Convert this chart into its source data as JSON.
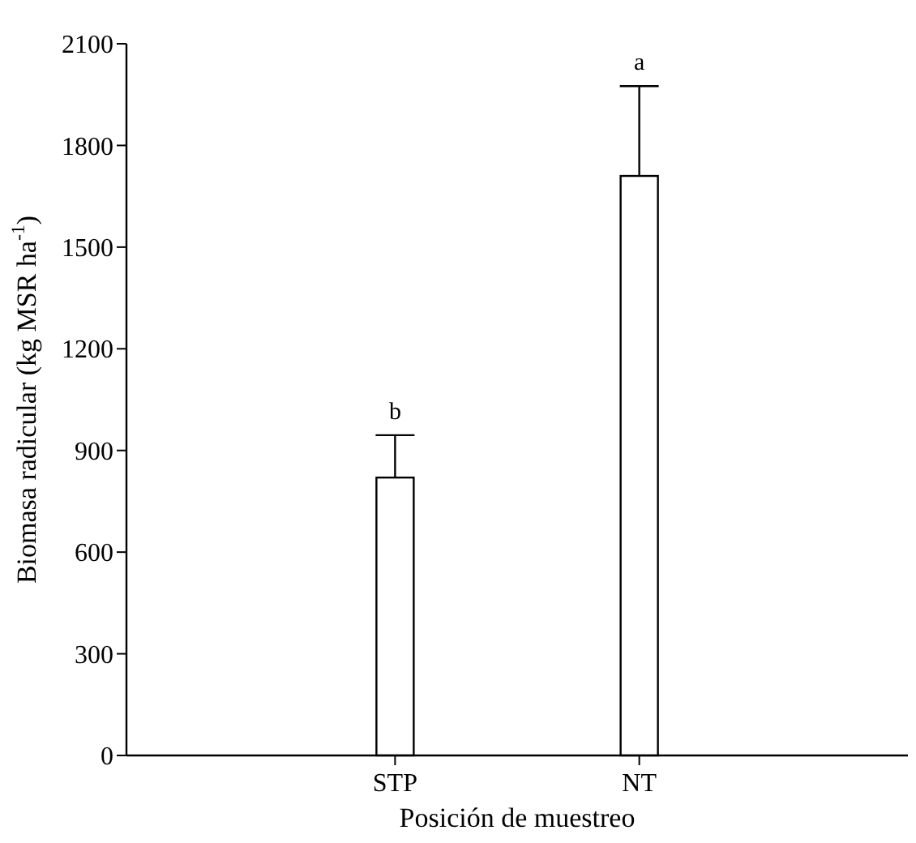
{
  "chart_data": {
    "type": "bar",
    "xlabel": "Posición de muestreo",
    "ylabel": "Biomasa radicular (kg MSR ha$^{-1}$)",
    "categories": [
      "STP",
      "NT"
    ],
    "values": [
      820,
      1710
    ],
    "errors": [
      [
        820,
        945
      ],
      [
        1710,
        1975
      ]
    ],
    "color": "#ffffff",
    "ylim": [
      0,
      2100
    ],
    "yticks": [
      0,
      300,
      600,
      900,
      1200,
      1500,
      1800,
      2100
    ],
    "annotations": [
      "b",
      "a"
    ]
  }
}
